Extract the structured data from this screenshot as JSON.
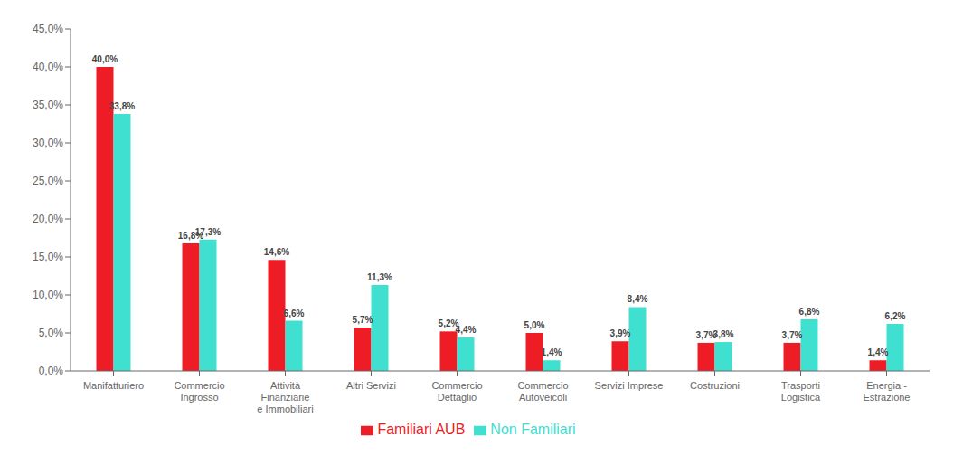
{
  "chart_data": {
    "type": "bar",
    "categories": [
      "Manifatturiero",
      "Commercio\nIngrosso",
      "Attività\nFinanziarie\ne Immobiliari",
      "Altri Servizi",
      "Commercio\nDettaglio",
      "Commercio\nAutoveicoli",
      "Servizi Imprese",
      "Costruzioni",
      "Trasporti\nLogistica",
      "Energia -\nEstrazione"
    ],
    "series": [
      {
        "name": "Familiari AUB",
        "color": "#ee1c25",
        "values": [
          40.0,
          16.8,
          14.6,
          5.7,
          5.2,
          5.0,
          3.9,
          3.7,
          3.7,
          1.4
        ],
        "value_labels": [
          "40,0%",
          "16,8%",
          "14,6%",
          "5,7%",
          "5,2%",
          "5,0%",
          "3,9%",
          "3,7%",
          "3,7%",
          "1,4%"
        ]
      },
      {
        "name": "Non Familiari",
        "color": "#40e0d0",
        "values": [
          33.8,
          17.3,
          6.6,
          11.3,
          4.4,
          1.4,
          8.4,
          3.8,
          6.8,
          6.2
        ],
        "value_labels": [
          "33,8%",
          "17,3%",
          "6,6%",
          "11,3%",
          "4,4%",
          "1,4%",
          "8,4%",
          "3,8%",
          "6,8%",
          "6,2%"
        ]
      }
    ],
    "ylim": [
      0,
      45
    ],
    "yticks": [
      {
        "value": 0,
        "label": "0,0%"
      },
      {
        "value": 5,
        "label": "5,0%"
      },
      {
        "value": 10,
        "label": "10,0%"
      },
      {
        "value": 15,
        "label": "15,0%"
      },
      {
        "value": 20,
        "label": "20,0%"
      },
      {
        "value": 25,
        "label": "25,0%"
      },
      {
        "value": 30,
        "label": "30,0%"
      },
      {
        "value": 35,
        "label": "35,0%"
      },
      {
        "value": 40,
        "label": "40,0%"
      },
      {
        "value": 45,
        "label": "45,0%"
      }
    ],
    "grid": false,
    "legend": "bottom",
    "data_labels": true
  }
}
